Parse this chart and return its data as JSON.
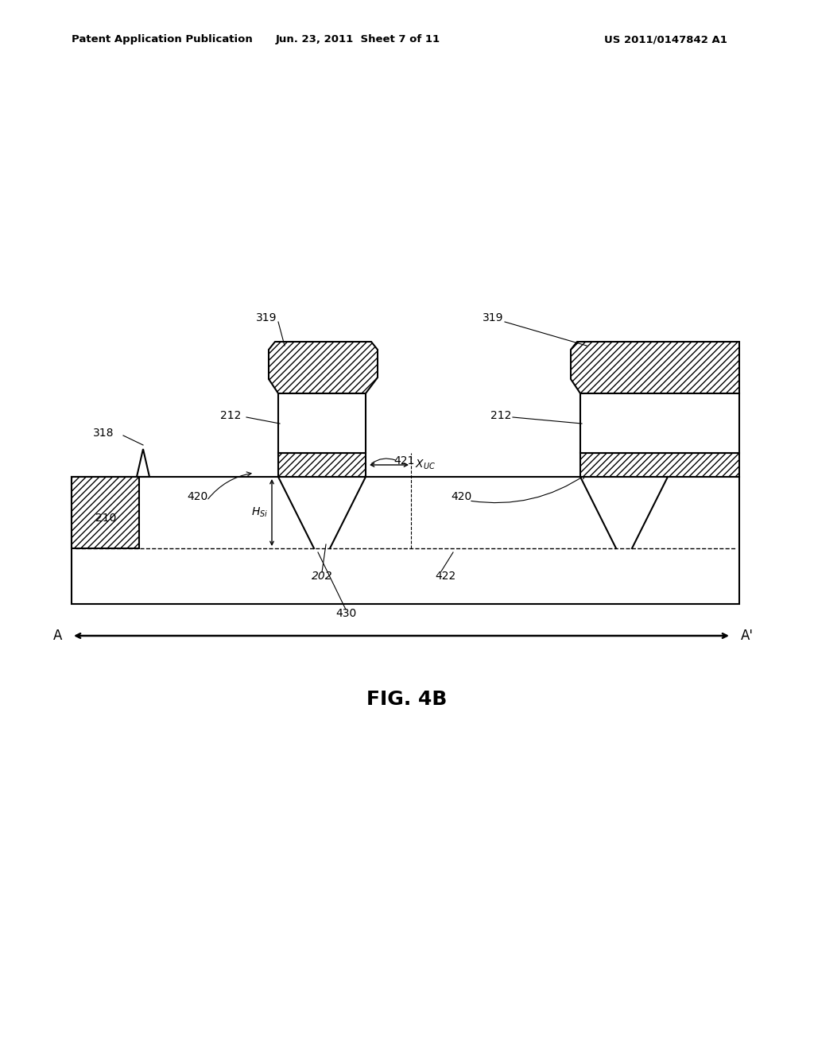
{
  "bg_color": "#ffffff",
  "line_color": "#000000",
  "header_left": "Patent Application Publication",
  "header_mid": "Jun. 23, 2011  Sheet 7 of 11",
  "header_right": "US 2011/0147842 A1",
  "fig_label": "FIG. 4B"
}
